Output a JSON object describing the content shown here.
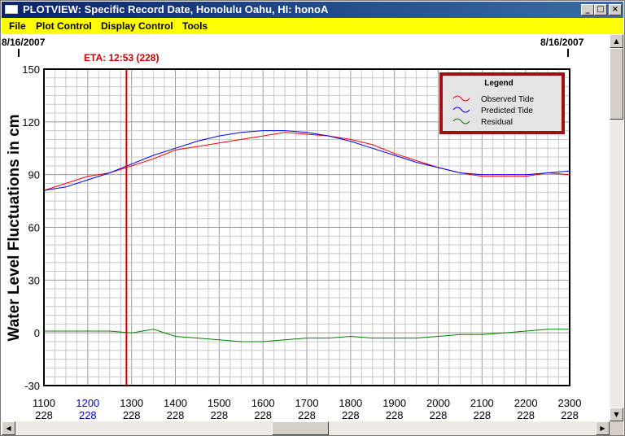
{
  "window": {
    "title": "PLOTVIEW: Specific Record Date, Honolulu Oahu, HI: honoA"
  },
  "menu": {
    "items": [
      "File",
      "Plot Control",
      "Display Control",
      "Tools"
    ]
  },
  "plot": {
    "date_left": "8/16/2007",
    "date_right": "8/16/2007",
    "eta_label": "ETA: 12:53 (228)"
  },
  "chart_data": {
    "type": "line",
    "ylabel": "Water Level Fluctuations in cm",
    "xlabel": "",
    "ylim": [
      -30,
      150
    ],
    "yticks": [
      150,
      120,
      90,
      60,
      30,
      0,
      -30
    ],
    "xlim": [
      1100,
      2300
    ],
    "xticks": [
      {
        "time": "1100",
        "day": "228"
      },
      {
        "time": "1200",
        "day": "228"
      },
      {
        "time": "1300",
        "day": "228"
      },
      {
        "time": "1400",
        "day": "228"
      },
      {
        "time": "1500",
        "day": "228"
      },
      {
        "time": "1600",
        "day": "228"
      },
      {
        "time": "1700",
        "day": "228"
      },
      {
        "time": "1800",
        "day": "228"
      },
      {
        "time": "1900",
        "day": "228"
      },
      {
        "time": "2000",
        "day": "228"
      },
      {
        "time": "2100",
        "day": "228"
      },
      {
        "time": "2200",
        "day": "228"
      },
      {
        "time": "2300",
        "day": "228"
      }
    ],
    "highlight_tick_index": 1,
    "eta_time": 1253,
    "grid": true,
    "legend": {
      "title": "Legend",
      "position": "top-right"
    },
    "x": [
      1100,
      1130,
      1200,
      1230,
      1300,
      1330,
      1400,
      1430,
      1500,
      1530,
      1600,
      1630,
      1700,
      1730,
      1800,
      1830,
      1900,
      1930,
      2000,
      2030,
      2100,
      2130,
      2200,
      2230,
      2300
    ],
    "series": [
      {
        "name": "Observed Tide",
        "color": "#ff0000",
        "values": [
          81,
          85,
          89,
          91,
          95,
          99,
          104,
          106,
          108,
          110,
          112,
          114,
          113,
          112,
          110,
          107,
          102,
          98,
          94,
          91,
          89,
          89,
          89,
          91,
          90
        ]
      },
      {
        "name": "Predicted Tide",
        "color": "#0000ff",
        "values": [
          81,
          83,
          87,
          91,
          96,
          101,
          105,
          109,
          112,
          114,
          115,
          115,
          114,
          112,
          109,
          105,
          101,
          97,
          94,
          91,
          90,
          90,
          90,
          91,
          92
        ]
      },
      {
        "name": "Residual",
        "color": "#008000",
        "values": [
          1,
          1,
          1,
          1,
          0,
          2,
          -2,
          -3,
          -4,
          -5,
          -5,
          -4,
          -3,
          -3,
          -2,
          -3,
          -3,
          -3,
          -2,
          -1,
          -1,
          0,
          1,
          2,
          2
        ]
      }
    ]
  }
}
